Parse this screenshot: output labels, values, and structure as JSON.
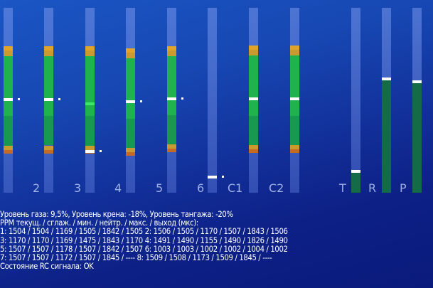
{
  "channel_labels": [
    "",
    "2",
    "3",
    "4",
    "5",
    "6",
    "C1",
    "C2",
    "T",
    "R",
    "P"
  ],
  "colors": {
    "top": "#e0a528",
    "amber": "#c99a2f",
    "green": "#1fb24d",
    "lower": "#199850",
    "orange": "#c46a25",
    "dark_green": "#136c47"
  },
  "channels": [
    {
      "type": "full",
      "current": 1504,
      "min": 1169,
      "max": 1842,
      "current_dot": true
    },
    {
      "type": "full",
      "current": 1506,
      "min": 1170,
      "max": 1843,
      "current_dot": true
    },
    {
      "type": "full",
      "current": 1170,
      "min": 1169,
      "max": 1843,
      "mid_bar": 1475,
      "current_dot": true
    },
    {
      "type": "full",
      "current": 1491,
      "min": 1155,
      "max": 1826,
      "current_dot": true
    },
    {
      "type": "full",
      "current": 1507,
      "min": 1178,
      "max": 1842,
      "current_dot": true
    },
    {
      "type": "track",
      "current": 1003,
      "current_dot": true
    },
    {
      "type": "full",
      "current": 1507,
      "min": 1172,
      "max": 1845,
      "current_dot": false
    },
    {
      "type": "full",
      "current": 1509,
      "min": 1173,
      "max": 1845,
      "current_dot": false
    },
    {
      "type": "fill",
      "level": 1040
    },
    {
      "type": "fill",
      "level": 1640
    },
    {
      "type": "fill",
      "level": 1620
    }
  ],
  "info_lines": [
    "Уровень газа: 9,5%, Уровень крена: -18%, Уровень тангажа: -20%",
    "PPM текущ. / сглаж. / мин. / нейтр. / макс. / выход (мкс):",
    " 1: 1504 / 1504 / 1169 / 1505 / 1842 / 1505  2: 1506 / 1505 / 1170 / 1507 / 1843 / 1506",
    " 3: 1170 / 1170 / 1169 / 1475 / 1843 / 1170  4: 1491 / 1490 / 1155 / 1490 / 1826 / 1490",
    " 5: 1507 / 1507 / 1178 / 1507 / 1842 / 1507  6: 1003 / 1003 / 1002 / 1002 / 1004 / 1002",
    " 7: 1507 / 1507 / 1172 / 1507 / 1845 / ----  8: 1509 / 1508 / 1173 / 1509 / 1845 / ----",
    "Состояние RC сигнала: OK"
  ]
}
